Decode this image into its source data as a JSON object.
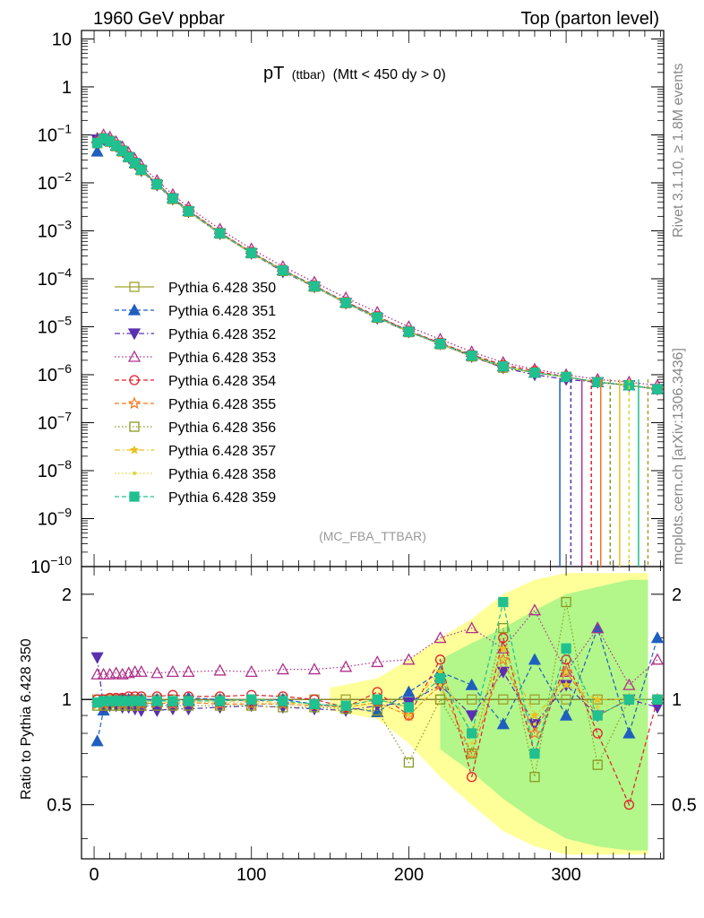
{
  "header": {
    "left": "1960 GeV ppbar",
    "right": "Top (parton level)"
  },
  "plot_title": {
    "main": "pT",
    "small": "(ttbar)",
    "rest": "(Mtt < 450 dy > 0)"
  },
  "side_labels": {
    "rivet": "Rivet 3.1.10, ≥ 1.8M events",
    "mcplots": "mcplots.cern.ch [arXiv:1306.3436]"
  },
  "analysis_tag": "(MC_FBA_TTBAR)",
  "ratio_ylabel": "Ratio to Pythia 6.428 350",
  "colors": {
    "s350": "#a0a030",
    "s351": "#1f5fbf",
    "s352": "#5a2fb0",
    "s353": "#b0308a",
    "s354": "#e0202a",
    "s355": "#f07820",
    "s356": "#8a9a20",
    "s357": "#e8c020",
    "s358": "#d8d830",
    "s359": "#20c090",
    "band_yellow": "#ffff80",
    "band_green": "#80f080"
  },
  "chart_data": [
    {
      "type": "line",
      "panel": "main",
      "yscale": "log",
      "ylim": [
        1e-10,
        15
      ],
      "xlim": [
        -8,
        362
      ],
      "y_ticks": [
        "10^-10",
        "10^-9",
        "10^-8",
        "10^-7",
        "10^-6",
        "10^-5",
        "10^-4",
        "10^-3",
        "10^-2",
        "10^-1",
        "1",
        "10"
      ],
      "x": [
        2,
        6,
        10,
        14,
        18,
        22,
        26,
        30,
        40,
        50,
        60,
        80,
        100,
        120,
        140,
        160,
        180,
        200,
        220,
        240,
        260,
        280,
        300,
        320,
        340,
        358
      ],
      "series": [
        {
          "name": "Pythia 6.428 350",
          "marker": "open-square",
          "line": "solid",
          "values": [
            0.07,
            0.085,
            0.075,
            0.06,
            0.047,
            0.035,
            0.026,
            0.019,
            0.0095,
            0.0048,
            0.0026,
            0.0009,
            0.00035,
            0.00015,
            7e-05,
            3.2e-05,
            1.6e-05,
            8e-06,
            4.5e-06,
            2.5e-06,
            1.5e-06,
            1.1e-06,
            9e-07,
            7e-07,
            6e-07,
            5e-07
          ]
        },
        {
          "name": "Pythia 6.428 351",
          "marker": "filled-triangle-up",
          "line": "dashed",
          "values": [
            0.045,
            0.08,
            0.075,
            0.06,
            0.047,
            0.035,
            0.026,
            0.019,
            0.0095,
            0.0048,
            0.0026,
            0.0009,
            0.00035,
            0.00015,
            7e-05,
            3.2e-05,
            1.6e-05,
            8e-06,
            4.5e-06,
            2.5e-06,
            1.5e-06,
            1.1e-06,
            9e-07,
            7e-07,
            6e-07,
            5e-07
          ]
        },
        {
          "name": "Pythia 6.428 352",
          "marker": "filled-triangle-down",
          "line": "dashdot",
          "values": [
            0.08,
            0.082,
            0.072,
            0.058,
            0.045,
            0.034,
            0.025,
            0.018,
            0.009,
            0.0046,
            0.0025,
            0.00087,
            0.00034,
            0.00014,
            6.8e-05,
            3.1e-05,
            1.5e-05,
            7.8e-06,
            4.4e-06,
            2.4e-06,
            1.4e-06,
            1e-06,
            8e-07,
            7e-07,
            6e-07,
            5e-07
          ]
        },
        {
          "name": "Pythia 6.428 353",
          "marker": "open-triangle-up",
          "line": "dotted",
          "values": [
            0.085,
            0.1,
            0.09,
            0.072,
            0.056,
            0.042,
            0.031,
            0.023,
            0.0112,
            0.0057,
            0.0031,
            0.00108,
            0.00042,
            0.00018,
            8.5e-05,
            4e-05,
            2e-05,
            1e-05,
            5.5e-06,
            3e-06,
            1.8e-06,
            1.3e-06,
            1e-06,
            8e-07,
            7e-07,
            6e-07
          ]
        },
        {
          "name": "Pythia 6.428 354",
          "marker": "open-circle",
          "line": "dashed",
          "values": [
            0.07,
            0.086,
            0.076,
            0.061,
            0.048,
            0.036,
            0.027,
            0.0195,
            0.0097,
            0.0049,
            0.0027,
            0.00092,
            0.00036,
            0.000153,
            7.2e-05,
            3.3e-05,
            1.65e-05,
            8.2e-06,
            4.6e-06,
            2.6e-06,
            1.6e-06,
            1.2e-06,
            9e-07,
            7e-07,
            6e-07,
            5e-07
          ]
        },
        {
          "name": "Pythia 6.428 355",
          "marker": "open-star",
          "line": "dashed",
          "values": [
            0.068,
            0.083,
            0.073,
            0.059,
            0.046,
            0.034,
            0.0255,
            0.0185,
            0.0093,
            0.0047,
            0.00255,
            0.00088,
            0.00034,
            0.000147,
            6.9e-05,
            3.1e-05,
            1.55e-05,
            7.8e-06,
            4.4e-06,
            2.4e-06,
            1.5e-06,
            1.1e-06,
            9e-07,
            7e-07,
            6e-07,
            5e-07
          ]
        },
        {
          "name": "Pythia 6.428 356",
          "marker": "open-square",
          "line": "dotted",
          "values": [
            0.067,
            0.082,
            0.072,
            0.058,
            0.045,
            0.034,
            0.025,
            0.0183,
            0.0092,
            0.0046,
            0.0025,
            0.00087,
            0.00034,
            0.000145,
            6.8e-05,
            3.1e-05,
            1.53e-05,
            7.7e-06,
            4.3e-06,
            2.4e-06,
            1.4e-06,
            1.1e-06,
            9e-07,
            7e-07,
            6e-07,
            5e-07
          ]
        },
        {
          "name": "Pythia 6.428 357",
          "marker": "filled-star-small",
          "line": "dashdot",
          "values": [
            0.069,
            0.084,
            0.074,
            0.0595,
            0.0465,
            0.0345,
            0.0257,
            0.0188,
            0.0094,
            0.00475,
            0.00257,
            0.00089,
            0.000345,
            0.000148,
            7e-05,
            3.15e-05,
            1.58e-05,
            7.9e-06,
            4.4e-06,
            2.5e-06,
            1.5e-06,
            1.1e-06,
            9e-07,
            7e-07,
            6e-07,
            5e-07
          ]
        },
        {
          "name": "Pythia 6.428 358",
          "marker": "filled-dot",
          "line": "dotted",
          "values": [
            0.068,
            0.083,
            0.073,
            0.059,
            0.046,
            0.034,
            0.0255,
            0.0186,
            0.0093,
            0.0047,
            0.00255,
            0.00088,
            0.00034,
            0.000147,
            6.9e-05,
            3.1e-05,
            1.55e-05,
            7.8e-06,
            4.4e-06,
            2.4e-06,
            1.5e-06,
            1.1e-06,
            9e-07,
            7e-07,
            6e-07,
            5e-07
          ]
        },
        {
          "name": "Pythia 6.428 359",
          "marker": "filled-square",
          "line": "dashed",
          "values": [
            0.068,
            0.084,
            0.074,
            0.0595,
            0.0465,
            0.0345,
            0.0258,
            0.0188,
            0.0094,
            0.00476,
            0.00258,
            0.00089,
            0.000346,
            0.000149,
            7e-05,
            3.17e-05,
            1.58e-05,
            7.9e-06,
            4.4e-06,
            2.5e-06,
            1.5e-06,
            1.1e-06,
            9e-07,
            7e-07,
            6e-07,
            5e-07
          ]
        }
      ]
    },
    {
      "type": "line",
      "panel": "ratio",
      "ylabel": "Ratio to Pythia 6.428 350",
      "yscale": "log",
      "ylim": [
        0.35,
        2.4
      ],
      "xlim": [
        -8,
        362
      ],
      "y_ticks": [
        "0.5",
        "1",
        "2"
      ],
      "x_ticks": [
        "0",
        "100",
        "200",
        "300"
      ],
      "x": [
        2,
        6,
        10,
        14,
        18,
        22,
        26,
        30,
        40,
        50,
        60,
        80,
        100,
        120,
        140,
        160,
        180,
        200,
        220,
        240,
        260,
        280,
        300,
        320,
        340,
        358
      ],
      "series": [
        {
          "name": "Pythia 6.428 350",
          "values": [
            1,
            1,
            1,
            1,
            1,
            1,
            1,
            1,
            1,
            1,
            1,
            1,
            1,
            1,
            1,
            1,
            1,
            1,
            1,
            1,
            1,
            1,
            1,
            1,
            1,
            1
          ]
        },
        {
          "name": "Pythia 6.428 351",
          "values": [
            0.76,
            0.93,
            0.98,
            0.99,
            1.0,
            1.0,
            0.99,
            1.0,
            1.0,
            0.98,
            1.01,
            1.0,
            0.99,
            1.0,
            0.97,
            0.95,
            0.92,
            1.05,
            1.2,
            1.1,
            0.85,
            1.3,
            0.9,
            1.6,
            0.8,
            1.5
          ]
        },
        {
          "name": "Pythia 6.428 352",
          "values": [
            1.32,
            0.95,
            0.96,
            0.96,
            0.95,
            0.95,
            0.94,
            0.93,
            0.93,
            0.94,
            0.94,
            0.95,
            0.96,
            0.95,
            0.94,
            0.93,
            0.96,
            0.98,
            1.1,
            0.9,
            1.2,
            0.85,
            1.1,
            0.9,
            1.0,
            0.95
          ]
        },
        {
          "name": "Pythia 6.428 353",
          "values": [
            1.18,
            1.18,
            1.18,
            1.19,
            1.18,
            1.19,
            1.2,
            1.2,
            1.19,
            1.2,
            1.2,
            1.21,
            1.2,
            1.22,
            1.22,
            1.24,
            1.28,
            1.3,
            1.5,
            1.6,
            1.4,
            1.8,
            1.2,
            1.6,
            1.1,
            1.3
          ]
        },
        {
          "name": "Pythia 6.428 354",
          "values": [
            1.0,
            1.0,
            1.01,
            1.01,
            1.01,
            1.02,
            1.02,
            1.02,
            1.02,
            1.03,
            1.02,
            1.02,
            1.03,
            1.02,
            1.0,
            0.95,
            1.05,
            0.9,
            1.3,
            0.6,
            1.5,
            0.7,
            1.3,
            0.8,
            0.5,
            1.0
          ]
        },
        {
          "name": "Pythia 6.428 355",
          "values": [
            0.97,
            0.97,
            0.98,
            0.98,
            0.97,
            0.98,
            0.98,
            0.97,
            0.98,
            0.97,
            0.98,
            0.97,
            0.97,
            0.97,
            0.96,
            0.95,
            0.98,
            0.9,
            1.1,
            0.7,
            1.3,
            0.8,
            1.2,
            0.9,
            1.0,
            1.0
          ]
        },
        {
          "name": "Pythia 6.428 356",
          "values": [
            0.96,
            0.96,
            0.96,
            0.96,
            0.96,
            0.96,
            0.96,
            0.96,
            0.96,
            0.96,
            0.96,
            0.96,
            0.96,
            0.95,
            0.95,
            0.94,
            0.93,
            0.66,
            1.0,
            0.7,
            1.6,
            0.6,
            1.9,
            0.65,
            1.0,
            1.0
          ]
        },
        {
          "name": "Pythia 6.428 357",
          "values": [
            0.98,
            0.98,
            0.99,
            0.99,
            0.99,
            0.99,
            0.99,
            0.99,
            0.99,
            0.99,
            0.99,
            0.99,
            0.99,
            0.98,
            0.97,
            0.96,
            1.0,
            0.95,
            1.2,
            0.8,
            1.4,
            0.9,
            1.1,
            1.0,
            1.0,
            1.0
          ]
        },
        {
          "name": "Pythia 6.428 358",
          "values": [
            0.97,
            0.97,
            0.98,
            0.98,
            0.98,
            0.98,
            0.98,
            0.98,
            0.98,
            0.98,
            0.98,
            0.98,
            0.98,
            0.97,
            0.96,
            0.95,
            0.98,
            0.9,
            1.1,
            0.75,
            1.3,
            0.85,
            1.2,
            0.95,
            1.0,
            1.0
          ]
        },
        {
          "name": "Pythia 6.428 359",
          "values": [
            0.98,
            0.99,
            0.99,
            0.99,
            0.99,
            0.99,
            0.99,
            0.99,
            0.99,
            0.99,
            0.99,
            0.99,
            1.0,
            0.99,
            0.97,
            0.96,
            1.0,
            0.95,
            1.15,
            0.8,
            1.9,
            0.7,
            1.4,
            0.9,
            1.0,
            1.0
          ]
        }
      ]
    }
  ]
}
